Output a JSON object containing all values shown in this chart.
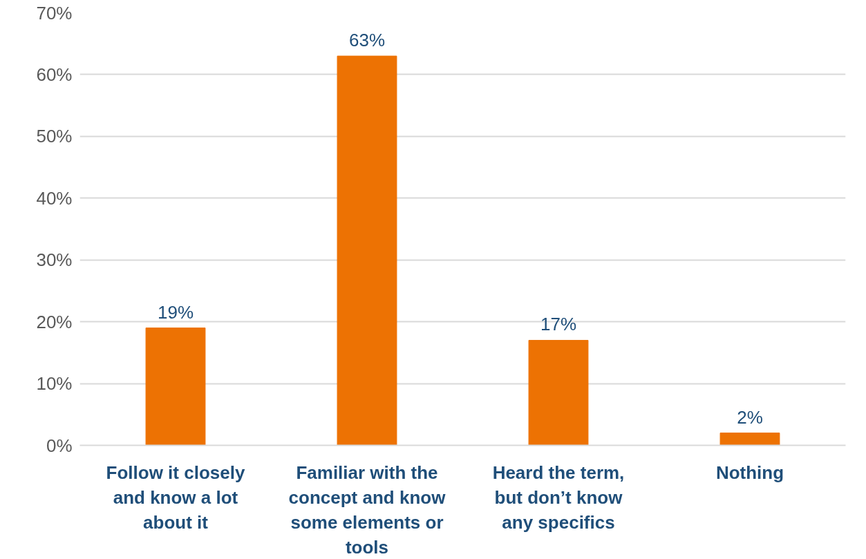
{
  "chart_data": {
    "type": "bar",
    "categories": [
      "Follow it closely and know a lot about it",
      "Familiar with the concept and know some elements or tools",
      "Heard the term, but don’t know any specifics",
      "Nothing"
    ],
    "values": [
      19,
      63,
      17,
      2
    ],
    "value_labels": [
      "19%",
      "63%",
      "17%",
      "2%"
    ],
    "color": "#ed7203",
    "ylim": [
      0,
      70
    ],
    "yticks": [
      {
        "value": 0,
        "label": "0%"
      },
      {
        "value": 10,
        "label": "10%"
      },
      {
        "value": 20,
        "label": "20%"
      },
      {
        "value": 30,
        "label": "30%"
      },
      {
        "value": 40,
        "label": "40%"
      },
      {
        "value": 50,
        "label": "50%"
      },
      {
        "value": 60,
        "label": "60%"
      },
      {
        "value": 70,
        "label": "70%"
      }
    ],
    "grid": "y"
  }
}
